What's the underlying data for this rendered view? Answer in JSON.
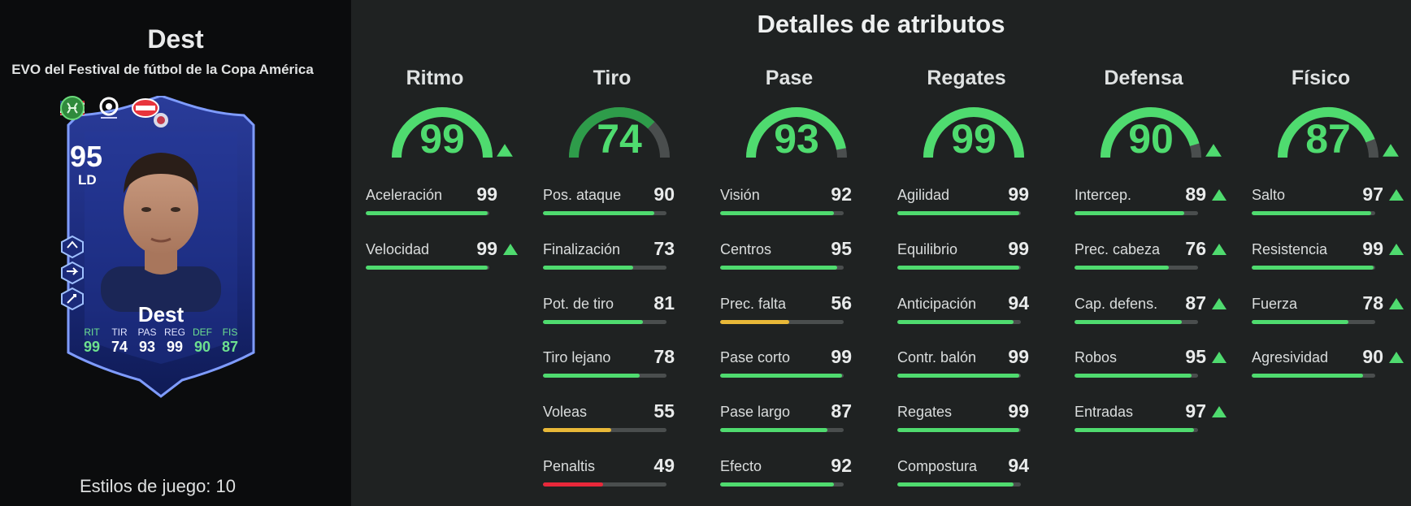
{
  "player": {
    "name": "Dest",
    "subtitle": "EVO del Festival de fútbol de la Copa América",
    "card": {
      "rating": "95",
      "position": "LD",
      "name": "Dest",
      "stats": [
        {
          "key": "RIT",
          "value": "99",
          "highlight": true
        },
        {
          "key": "TIR",
          "value": "74",
          "highlight": false
        },
        {
          "key": "PAS",
          "value": "93",
          "highlight": false
        },
        {
          "key": "REG",
          "value": "99",
          "highlight": false
        },
        {
          "key": "DEF",
          "value": "90",
          "highlight": true
        },
        {
          "key": "FIS",
          "value": "87",
          "highlight": true
        }
      ]
    },
    "playstyles": "Estilos de juego: 10"
  },
  "details": {
    "title": "Detalles de atributos",
    "categories": [
      {
        "name": "Ritmo",
        "value": 99,
        "upgraded": true,
        "attrs": [
          {
            "name": "Aceleración",
            "value": 99,
            "up": false
          },
          {
            "name": "Velocidad",
            "value": 99,
            "up": true
          }
        ]
      },
      {
        "name": "Tiro",
        "value": 74,
        "upgraded": false,
        "attrs": [
          {
            "name": "Pos. ataque",
            "value": 90,
            "up": false
          },
          {
            "name": "Finalización",
            "value": 73,
            "up": false
          },
          {
            "name": "Pot. de tiro",
            "value": 81,
            "up": false
          },
          {
            "name": "Tiro lejano",
            "value": 78,
            "up": false
          },
          {
            "name": "Voleas",
            "value": 55,
            "up": false
          },
          {
            "name": "Penaltis",
            "value": 49,
            "up": false
          }
        ]
      },
      {
        "name": "Pase",
        "value": 93,
        "upgraded": false,
        "attrs": [
          {
            "name": "Visión",
            "value": 92,
            "up": false
          },
          {
            "name": "Centros",
            "value": 95,
            "up": false
          },
          {
            "name": "Prec. falta",
            "value": 56,
            "up": false
          },
          {
            "name": "Pase corto",
            "value": 99,
            "up": false
          },
          {
            "name": "Pase largo",
            "value": 87,
            "up": false
          },
          {
            "name": "Efecto",
            "value": 92,
            "up": false
          }
        ]
      },
      {
        "name": "Regates",
        "value": 99,
        "upgraded": false,
        "attrs": [
          {
            "name": "Agilidad",
            "value": 99,
            "up": false
          },
          {
            "name": "Equilibrio",
            "value": 99,
            "up": false
          },
          {
            "name": "Anticipación",
            "value": 94,
            "up": false
          },
          {
            "name": "Contr. balón",
            "value": 99,
            "up": false
          },
          {
            "name": "Regates",
            "value": 99,
            "up": false
          },
          {
            "name": "Compostura",
            "value": 94,
            "up": false
          }
        ]
      },
      {
        "name": "Defensa",
        "value": 90,
        "upgraded": true,
        "attrs": [
          {
            "name": "Intercep.",
            "value": 89,
            "up": true
          },
          {
            "name": "Prec. cabeza",
            "value": 76,
            "up": true
          },
          {
            "name": "Cap. defens.",
            "value": 87,
            "up": true
          },
          {
            "name": "Robos",
            "value": 95,
            "up": true
          },
          {
            "name": "Entradas",
            "value": 97,
            "up": true
          }
        ]
      },
      {
        "name": "Físico",
        "value": 87,
        "upgraded": true,
        "attrs": [
          {
            "name": "Salto",
            "value": 97,
            "up": true
          },
          {
            "name": "Resistencia",
            "value": 99,
            "up": true
          },
          {
            "name": "Fuerza",
            "value": 78,
            "up": true
          },
          {
            "name": "Agresividad",
            "value": 90,
            "up": true
          }
        ]
      }
    ]
  },
  "colors": {
    "green": "#4fdb6f",
    "dark_green": "#2e9c4a",
    "yellow": "#e8b838",
    "red": "#e8283a",
    "track": "#4a4e4e"
  }
}
